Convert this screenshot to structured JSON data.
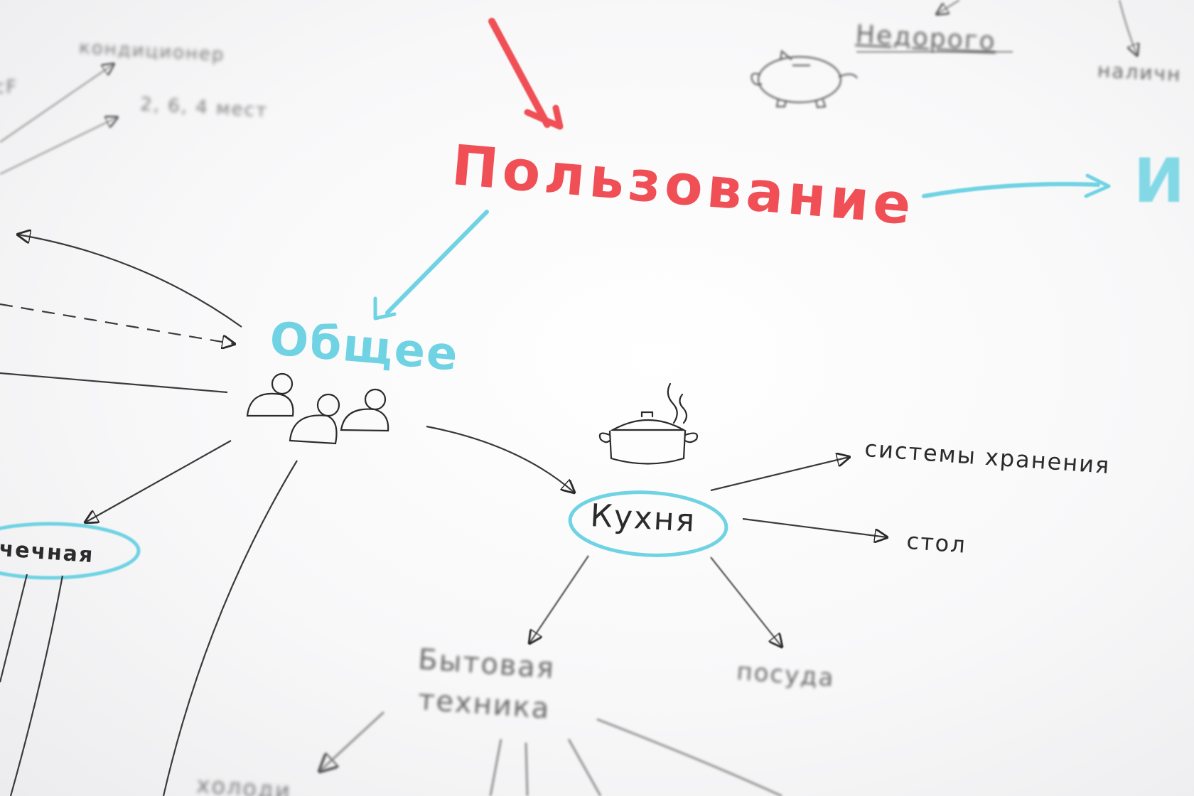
{
  "mindmap": {
    "central": "Пользование",
    "general": "Общее",
    "right_partial": "И",
    "kitchen": "Кухня",
    "storage": "системы хранения",
    "table": "стол",
    "dishes": "посуда",
    "appliances_line1": "Бытовая",
    "appliances_line2": "техника",
    "inexpensive": "Недорого",
    "cash": "наличн",
    "conditioner": "кондиционер",
    "seats": "2, 6, 4 мест",
    "partial_top_left": "сF",
    "partial_left_oval": "чечная",
    "partial_bottom_left": "холоди"
  },
  "colors": {
    "red": "#ef4f55",
    "cyan": "#6fd3e3",
    "ink": "#2b2b2b",
    "paper": "#f8f8f9"
  },
  "icons": [
    "pointer-arrow-icon",
    "piggy-bank-icon",
    "people-group-icon",
    "cooking-pot-icon"
  ]
}
